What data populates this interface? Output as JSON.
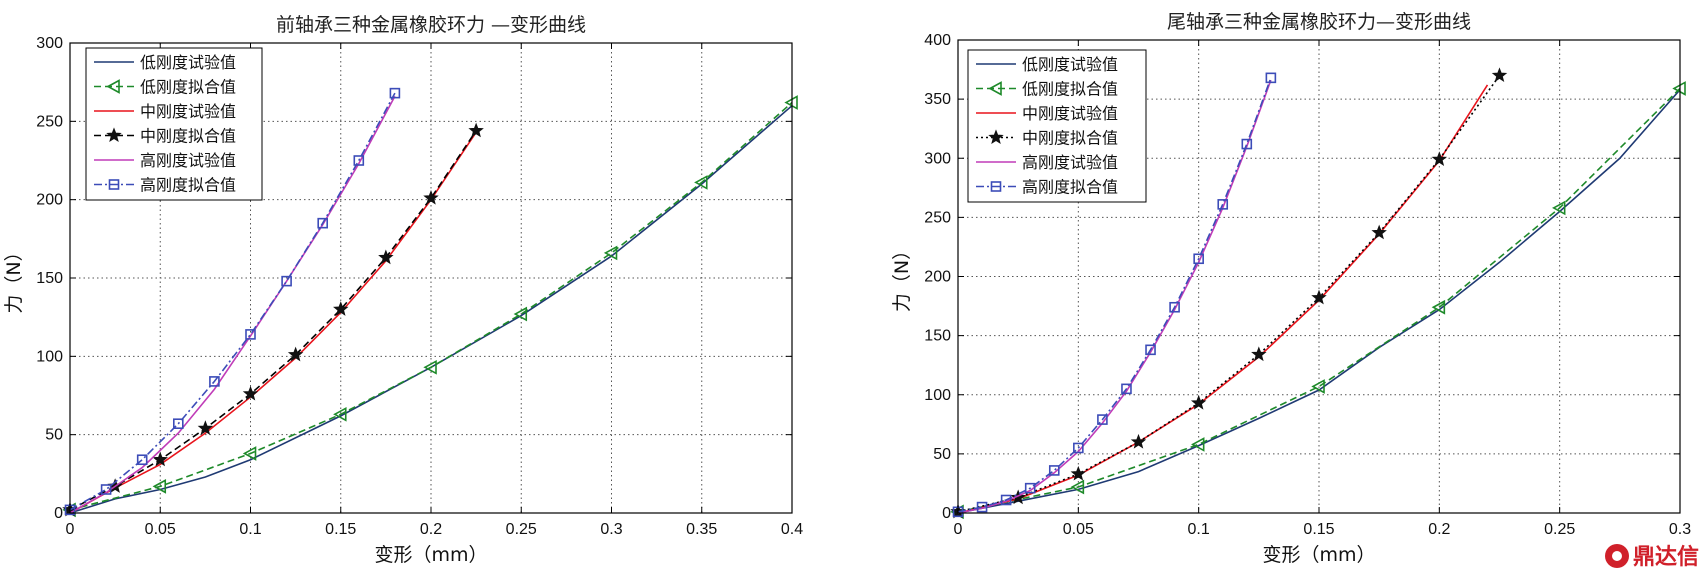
{
  "colors": {
    "low_test": "#1f3a73",
    "low_fit": "#1e8a2a",
    "mid_test": "#e8141c",
    "mid_fit": "#000000",
    "high_test": "#c03cb8",
    "high_fit": "#3c4cb8"
  },
  "chart_data": [
    {
      "type": "line",
      "title": "前轴承三种金属橡胶环力 —变形曲线",
      "xlabel": "变形（mm）",
      "ylabel": "力（N）",
      "xlim": [
        0,
        0.4
      ],
      "ylim": [
        0,
        300
      ],
      "xticks": [
        0,
        0.05,
        0.1,
        0.15,
        0.2,
        0.25,
        0.3,
        0.35,
        0.4
      ],
      "xtick_labels": [
        "0",
        "0.05",
        "0.1",
        "0.15",
        "0.2",
        "0.25",
        "0.3",
        "0.35",
        "0.4"
      ],
      "yticks": [
        0,
        50,
        100,
        150,
        200,
        250,
        300
      ],
      "ytick_labels": [
        "0",
        "50",
        "100",
        "150",
        "200",
        "250",
        "300"
      ],
      "grid": true,
      "legend_position": "top-left",
      "series": [
        {
          "name": "低刚度试验值",
          "marker": "none",
          "dash": "solid",
          "color_key": "low_test",
          "x": [
            0,
            0.025,
            0.05,
            0.075,
            0.1,
            0.15,
            0.2,
            0.25,
            0.3,
            0.35,
            0.4
          ],
          "y": [
            0,
            9,
            15,
            23,
            34,
            62,
            93,
            126,
            164,
            210,
            260
          ]
        },
        {
          "name": "低刚度拟合值",
          "marker": "triangle-left",
          "dash": "dashed",
          "color_key": "low_fit",
          "x": [
            0,
            0.05,
            0.1,
            0.15,
            0.2,
            0.25,
            0.3,
            0.35,
            0.4
          ],
          "y": [
            2,
            17,
            38,
            63,
            93,
            127,
            166,
            211,
            262
          ]
        },
        {
          "name": "中刚度试验值",
          "marker": "none",
          "dash": "solid",
          "color_key": "mid_test",
          "x": [
            0,
            0.025,
            0.05,
            0.075,
            0.1,
            0.125,
            0.15,
            0.175,
            0.2,
            0.225
          ],
          "y": [
            0,
            16,
            31,
            51,
            74,
            99,
            128,
            161,
            200,
            243
          ]
        },
        {
          "name": "中刚度拟合值",
          "marker": "star",
          "dash": "dashed",
          "color_key": "mid_fit",
          "x": [
            0,
            0.025,
            0.05,
            0.075,
            0.1,
            0.125,
            0.15,
            0.175,
            0.2,
            0.225
          ],
          "y": [
            2,
            17,
            34,
            54,
            76,
            101,
            130,
            163,
            201,
            244
          ]
        },
        {
          "name": "高刚度试验值",
          "marker": "none",
          "dash": "solid",
          "color_key": "high_test",
          "x": [
            0,
            0.02,
            0.04,
            0.06,
            0.08,
            0.1,
            0.12,
            0.14,
            0.16,
            0.18
          ],
          "y": [
            0,
            13,
            29,
            51,
            79,
            113,
            148,
            184,
            223,
            266
          ]
        },
        {
          "name": "高刚度拟合值",
          "marker": "square",
          "dash": "dashdot",
          "color_key": "high_fit",
          "x": [
            0,
            0.02,
            0.04,
            0.06,
            0.08,
            0.1,
            0.12,
            0.14,
            0.16,
            0.18
          ],
          "y": [
            2,
            15,
            34,
            57,
            84,
            114,
            148,
            185,
            225,
            268
          ]
        }
      ]
    },
    {
      "type": "line",
      "title": "尾轴承三种金属橡胶环力—变形曲线",
      "xlabel": "变形（mm）",
      "ylabel": "力（N）",
      "xlim": [
        0,
        0.3
      ],
      "ylim": [
        0,
        400
      ],
      "xticks": [
        0,
        0.05,
        0.1,
        0.15,
        0.2,
        0.25,
        0.3
      ],
      "xtick_labels": [
        "0",
        "0.05",
        "0.1",
        "0.15",
        "0.2",
        "0.25",
        "0.3"
      ],
      "yticks": [
        0,
        50,
        100,
        150,
        200,
        250,
        300,
        350,
        400
      ],
      "ytick_labels": [
        "0",
        "50",
        "100",
        "150",
        "200",
        "250",
        "300",
        "350",
        "400"
      ],
      "grid": true,
      "legend_position": "top-left",
      "series": [
        {
          "name": "低刚度试验值",
          "marker": "none",
          "dash": "solid",
          "color_key": "low_test",
          "x": [
            0,
            0.025,
            0.05,
            0.075,
            0.1,
            0.125,
            0.15,
            0.175,
            0.2,
            0.225,
            0.25,
            0.275,
            0.3
          ],
          "y": [
            0,
            10,
            20,
            35,
            57,
            80,
            104,
            140,
            172,
            212,
            255,
            300,
            358
          ]
        },
        {
          "name": "低刚度拟合值",
          "marker": "triangle-left",
          "dash": "dashed",
          "color_key": "low_fit",
          "x": [
            0,
            0.05,
            0.1,
            0.15,
            0.2,
            0.25,
            0.3
          ],
          "y": [
            1,
            22,
            58,
            107,
            174,
            258,
            359
          ]
        },
        {
          "name": "中刚度试验值",
          "marker": "none",
          "dash": "solid",
          "color_key": "mid_test",
          "x": [
            0,
            0.025,
            0.05,
            0.075,
            0.1,
            0.125,
            0.15,
            0.175,
            0.2,
            0.22
          ],
          "y": [
            0,
            12,
            32,
            60,
            92,
            132,
            180,
            236,
            298,
            362
          ]
        },
        {
          "name": "中刚度拟合值",
          "marker": "star",
          "dash": "dotted",
          "color_key": "mid_fit",
          "x": [
            0,
            0.025,
            0.05,
            0.075,
            0.1,
            0.125,
            0.15,
            0.175,
            0.2,
            0.225
          ],
          "y": [
            1,
            13,
            33,
            60,
            93,
            134,
            182,
            237,
            299,
            370
          ]
        },
        {
          "name": "高刚度试验值",
          "marker": "none",
          "dash": "solid",
          "color_key": "high_test",
          "x": [
            0,
            0.01,
            0.02,
            0.03,
            0.04,
            0.05,
            0.06,
            0.07,
            0.08,
            0.09,
            0.1,
            0.11,
            0.12,
            0.13
          ],
          "y": [
            0,
            4,
            10,
            19,
            34,
            52,
            76,
            103,
            136,
            172,
            212,
            258,
            310,
            366
          ]
        },
        {
          "name": "高刚度拟合值",
          "marker": "square",
          "dash": "dashdot",
          "color_key": "high_fit",
          "x": [
            0,
            0.01,
            0.02,
            0.03,
            0.04,
            0.05,
            0.06,
            0.07,
            0.08,
            0.09,
            0.1,
            0.11,
            0.12,
            0.13
          ],
          "y": [
            1,
            5,
            11,
            21,
            36,
            55,
            79,
            105,
            138,
            174,
            215,
            261,
            312,
            368
          ]
        }
      ]
    }
  ],
  "watermark": {
    "text": "鼎达信",
    "icon": "dingdaxin-logo-icon"
  }
}
